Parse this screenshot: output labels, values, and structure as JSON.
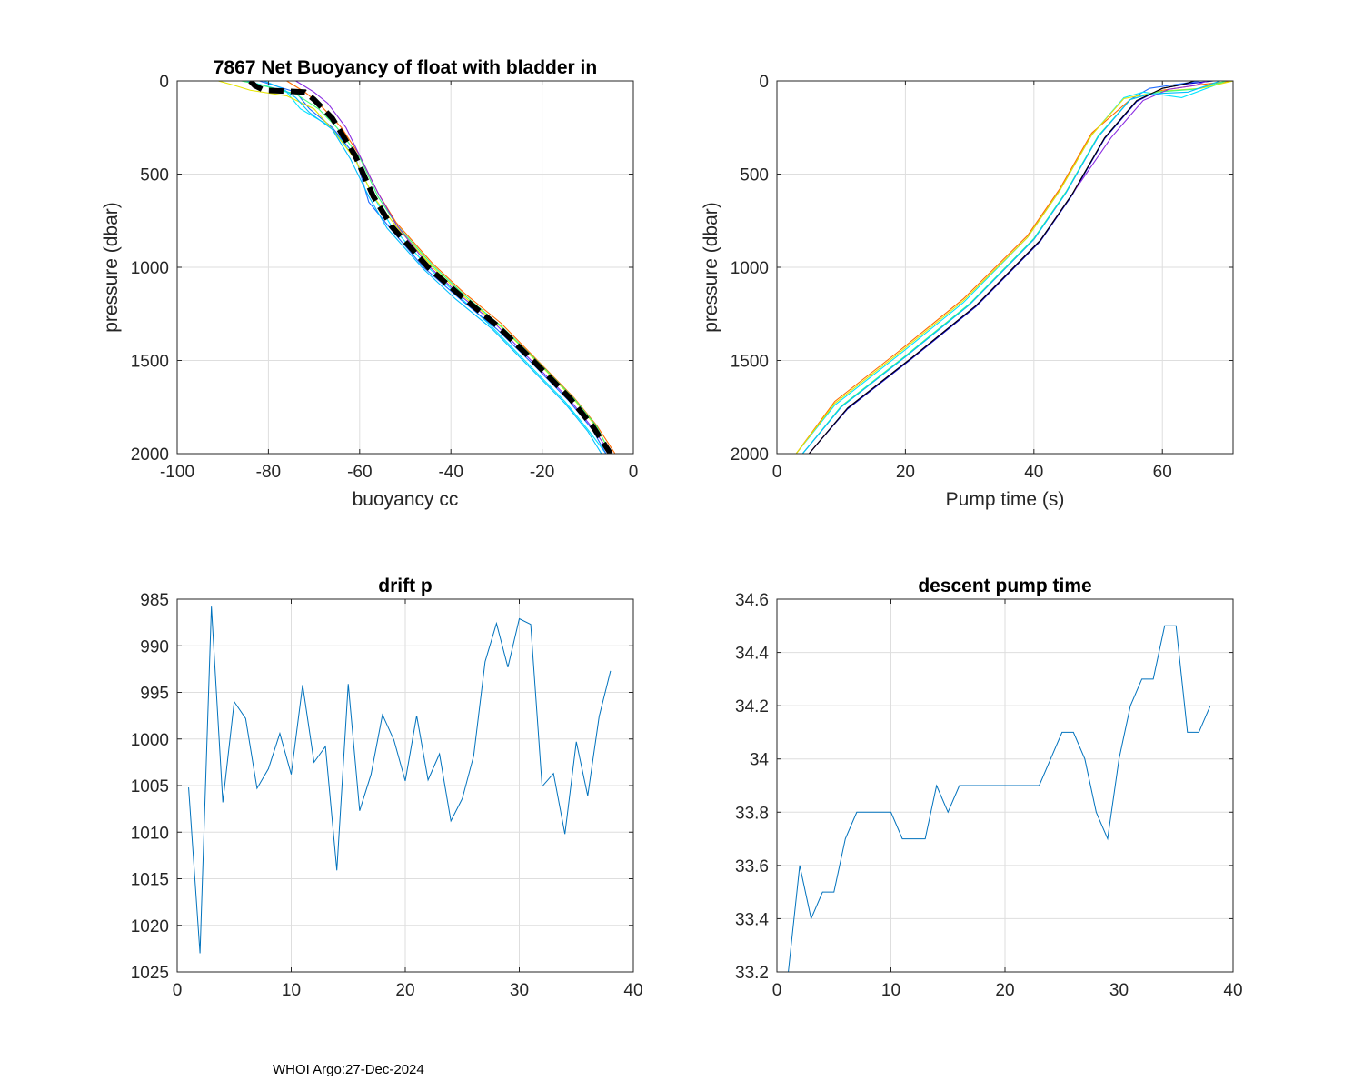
{
  "footer": "WHOI Argo:27-Dec-2024",
  "colors": {
    "series": "#0072BD",
    "grid": "#dedede",
    "axis": "#262626",
    "mean": "#000000"
  },
  "chart_data": [
    {
      "id": "p1",
      "type": "line",
      "title": "7867 Net Buoyancy of float with bladder in",
      "xlabel": "buoyancy cc",
      "ylabel": "pressure (dbar)",
      "xlim": [
        -100,
        0
      ],
      "ylim": [
        0,
        2000
      ],
      "y_reversed": true,
      "xticks": [
        -100,
        -80,
        -60,
        -40,
        -20,
        0
      ],
      "yticks": [
        0,
        500,
        1000,
        1500,
        2000
      ],
      "mean_profile": {
        "x": [
          -84,
          -83,
          -81,
          -76,
          -72,
          -70,
          -66,
          -61,
          -57,
          -53,
          -45,
          -38,
          -30,
          -22,
          -14,
          -9,
          -5
        ],
        "y": [
          0,
          25,
          50,
          55,
          60,
          100,
          200,
          400,
          620,
          780,
          1000,
          1150,
          1310,
          1500,
          1700,
          1850,
          2000
        ]
      },
      "profiles": [
        {
          "color": "#00e5ff",
          "x": [
            -85,
            -80,
            -76,
            -73,
            -66,
            -61,
            -57,
            -53,
            -45,
            -38,
            -31,
            -23,
            -15,
            -10,
            -6
          ],
          "y": [
            0,
            30,
            60,
            150,
            250,
            420,
            620,
            780,
            1000,
            1160,
            1320,
            1520,
            1720,
            1870,
            2000
          ]
        },
        {
          "color": "#1e6bff",
          "x": [
            -82,
            -78,
            -74,
            -71,
            -66,
            -61,
            -58,
            -53,
            -46,
            -38,
            -30,
            -22,
            -14,
            -9,
            -6
          ],
          "y": [
            0,
            30,
            60,
            150,
            250,
            400,
            650,
            800,
            1000,
            1170,
            1330,
            1520,
            1720,
            1870,
            2000
          ]
        },
        {
          "color": "#ff6a00",
          "x": [
            -76,
            -74,
            -72,
            -69,
            -64,
            -60,
            -56,
            -52,
            -44,
            -37,
            -29,
            -21,
            -13,
            -8,
            -4
          ],
          "y": [
            0,
            30,
            60,
            120,
            250,
            400,
            600,
            760,
            980,
            1140,
            1300,
            1500,
            1700,
            1850,
            2000
          ]
        },
        {
          "color": "#e6e600",
          "x": [
            -91,
            -88,
            -84,
            -76,
            -70,
            -66,
            -61,
            -57,
            -52,
            -44,
            -37,
            -29,
            -21,
            -13,
            -8,
            -5
          ],
          "y": [
            0,
            20,
            50,
            80,
            150,
            260,
            420,
            620,
            780,
            1000,
            1160,
            1320,
            1510,
            1710,
            1860,
            2000
          ]
        },
        {
          "color": "#3cff7a",
          "x": [
            -86,
            -82,
            -78,
            -74,
            -69,
            -65,
            -60,
            -56,
            -52,
            -44,
            -37,
            -29,
            -21,
            -13,
            -8,
            -5
          ],
          "y": [
            0,
            20,
            45,
            70,
            150,
            250,
            410,
            620,
            770,
            990,
            1150,
            1315,
            1505,
            1705,
            1855,
            2000
          ]
        },
        {
          "color": "#8a2be2",
          "x": [
            -74,
            -72,
            -70,
            -67,
            -63,
            -60,
            -56,
            -52,
            -45,
            -38,
            -30,
            -22,
            -14,
            -9,
            -5
          ],
          "y": [
            0,
            30,
            60,
            120,
            250,
            400,
            600,
            770,
            990,
            1150,
            1310,
            1510,
            1710,
            1860,
            2000
          ]
        },
        {
          "color": "#00bfff",
          "x": [
            -81,
            -77,
            -74,
            -71,
            -66,
            -62,
            -58,
            -54,
            -46,
            -39,
            -31,
            -23,
            -15,
            -10,
            -7
          ],
          "y": [
            0,
            40,
            90,
            170,
            260,
            420,
            620,
            790,
            1010,
            1170,
            1330,
            1530,
            1730,
            1880,
            2000
          ]
        }
      ]
    },
    {
      "id": "p2",
      "type": "line",
      "title": "",
      "xlabel": "Pump time (s)",
      "ylabel": "pressure (dbar)",
      "xlim": [
        0,
        71
      ],
      "ylim": [
        0,
        2000
      ],
      "y_reversed": true,
      "xticks": [
        0,
        20,
        40,
        60
      ],
      "yticks": [
        0,
        500,
        1000,
        1500,
        2000
      ],
      "profiles": [
        {
          "color": "#1e6bff",
          "x": [
            4,
            10,
            20,
            30,
            40,
            45,
            50,
            55,
            58,
            62,
            66
          ],
          "y": [
            2000,
            1750,
            1480,
            1200,
            850,
            600,
            300,
            100,
            40,
            20,
            0
          ]
        },
        {
          "color": "#0000cd",
          "x": [
            5,
            11,
            21,
            31,
            41,
            46,
            51,
            56,
            60,
            64,
            68
          ],
          "y": [
            2000,
            1760,
            1490,
            1210,
            860,
            610,
            310,
            110,
            40,
            15,
            0
          ]
        },
        {
          "color": "#00e5ff",
          "x": [
            3,
            9,
            19,
            29,
            39,
            44,
            49,
            54,
            57,
            63,
            70
          ],
          "y": [
            2000,
            1740,
            1470,
            1190,
            840,
            590,
            290,
            90,
            60,
            90,
            0
          ]
        },
        {
          "color": "#ff6a00",
          "x": [
            3,
            9,
            19,
            29,
            39,
            44,
            49,
            55,
            60,
            66,
            71
          ],
          "y": [
            2000,
            1720,
            1450,
            1170,
            830,
            580,
            280,
            100,
            50,
            20,
            0
          ]
        },
        {
          "color": "#e6e600",
          "x": [
            3,
            9,
            19,
            29,
            39,
            44,
            49,
            54,
            60,
            66,
            71
          ],
          "y": [
            2000,
            1730,
            1460,
            1180,
            840,
            590,
            290,
            95,
            55,
            40,
            0
          ]
        },
        {
          "color": "#3cff7a",
          "x": [
            4,
            10,
            20,
            30,
            40,
            45,
            50,
            55,
            59,
            65,
            70
          ],
          "y": [
            2000,
            1745,
            1475,
            1195,
            845,
            595,
            295,
            100,
            60,
            45,
            0
          ]
        },
        {
          "color": "#8a2be2",
          "x": [
            5,
            11,
            21,
            31,
            41,
            46,
            52,
            57,
            61,
            65,
            67
          ],
          "y": [
            2000,
            1755,
            1485,
            1205,
            855,
            605,
            305,
            105,
            45,
            25,
            0
          ]
        },
        {
          "color": "#00bfff",
          "x": [
            4,
            10,
            20,
            30,
            40,
            45,
            50,
            55,
            58,
            64,
            69
          ],
          "y": [
            2000,
            1750,
            1480,
            1200,
            850,
            600,
            300,
            100,
            70,
            60,
            0
          ]
        },
        {
          "color": "#000000",
          "x": [
            5,
            11,
            21,
            31,
            41,
            46,
            51,
            56,
            60,
            63,
            65
          ],
          "y": [
            2000,
            1755,
            1485,
            1205,
            855,
            605,
            305,
            105,
            40,
            20,
            0
          ]
        }
      ]
    },
    {
      "id": "p3",
      "type": "line",
      "title": "drift p",
      "xlabel": "",
      "ylabel": "",
      "xlim": [
        0,
        40
      ],
      "ylim": [
        985,
        1025
      ],
      "y_reversed": true,
      "xticks": [
        0,
        10,
        20,
        30,
        40
      ],
      "yticks": [
        985,
        990,
        995,
        1000,
        1005,
        1010,
        1015,
        1020,
        1025
      ],
      "x": [
        1,
        2,
        3,
        4,
        5,
        6,
        7,
        8,
        9,
        10,
        11,
        12,
        13,
        14,
        15,
        16,
        17,
        18,
        19,
        20,
        21,
        22,
        23,
        24,
        25,
        26,
        27,
        28,
        29,
        30,
        31,
        32,
        33,
        34,
        35,
        36,
        37,
        38
      ],
      "values": [
        1005.2,
        1023,
        985.8,
        1006.8,
        996,
        997.8,
        1005.3,
        1003.2,
        999.4,
        1003.8,
        994.2,
        1002.5,
        1000.8,
        1014.1,
        994.1,
        1007.7,
        1003.8,
        997.4,
        1000.1,
        1004.5,
        997.5,
        1004.4,
        1001.6,
        1008.8,
        1006.4,
        1001.8,
        991.7,
        987.6,
        992.3,
        987.1,
        987.7,
        1005.1,
        1003.7,
        1010.2,
        1000.3,
        1006.1,
        997.6,
        992.7
      ]
    },
    {
      "id": "p4",
      "type": "line",
      "title": "descent pump time",
      "xlabel": "",
      "ylabel": "",
      "xlim": [
        0,
        40
      ],
      "ylim": [
        33.2,
        34.6
      ],
      "y_reversed": false,
      "xticks": [
        0,
        10,
        20,
        30,
        40
      ],
      "yticks": [
        33.2,
        33.4,
        33.6,
        33.8,
        34,
        34.2,
        34.4,
        34.6
      ],
      "yticklabels": [
        "33.2",
        "33.4",
        "33.6",
        "33.8",
        "34",
        "34.2",
        "34.4",
        "34.6"
      ],
      "x": [
        1,
        2,
        3,
        4,
        5,
        6,
        7,
        8,
        9,
        10,
        11,
        12,
        13,
        14,
        15,
        16,
        17,
        18,
        19,
        20,
        21,
        22,
        23,
        24,
        25,
        26,
        27,
        28,
        29,
        30,
        31,
        32,
        33,
        34,
        35,
        36,
        37,
        38
      ],
      "values": [
        33.2,
        33.6,
        33.4,
        33.5,
        33.5,
        33.7,
        33.8,
        33.8,
        33.8,
        33.8,
        33.7,
        33.7,
        33.7,
        33.9,
        33.8,
        33.9,
        33.9,
        33.9,
        33.9,
        33.9,
        33.9,
        33.9,
        33.9,
        34.0,
        34.1,
        34.1,
        34.0,
        33.8,
        33.7,
        34.0,
        34.2,
        34.3,
        34.3,
        34.5,
        34.5,
        34.1,
        34.1,
        34.2
      ]
    }
  ]
}
